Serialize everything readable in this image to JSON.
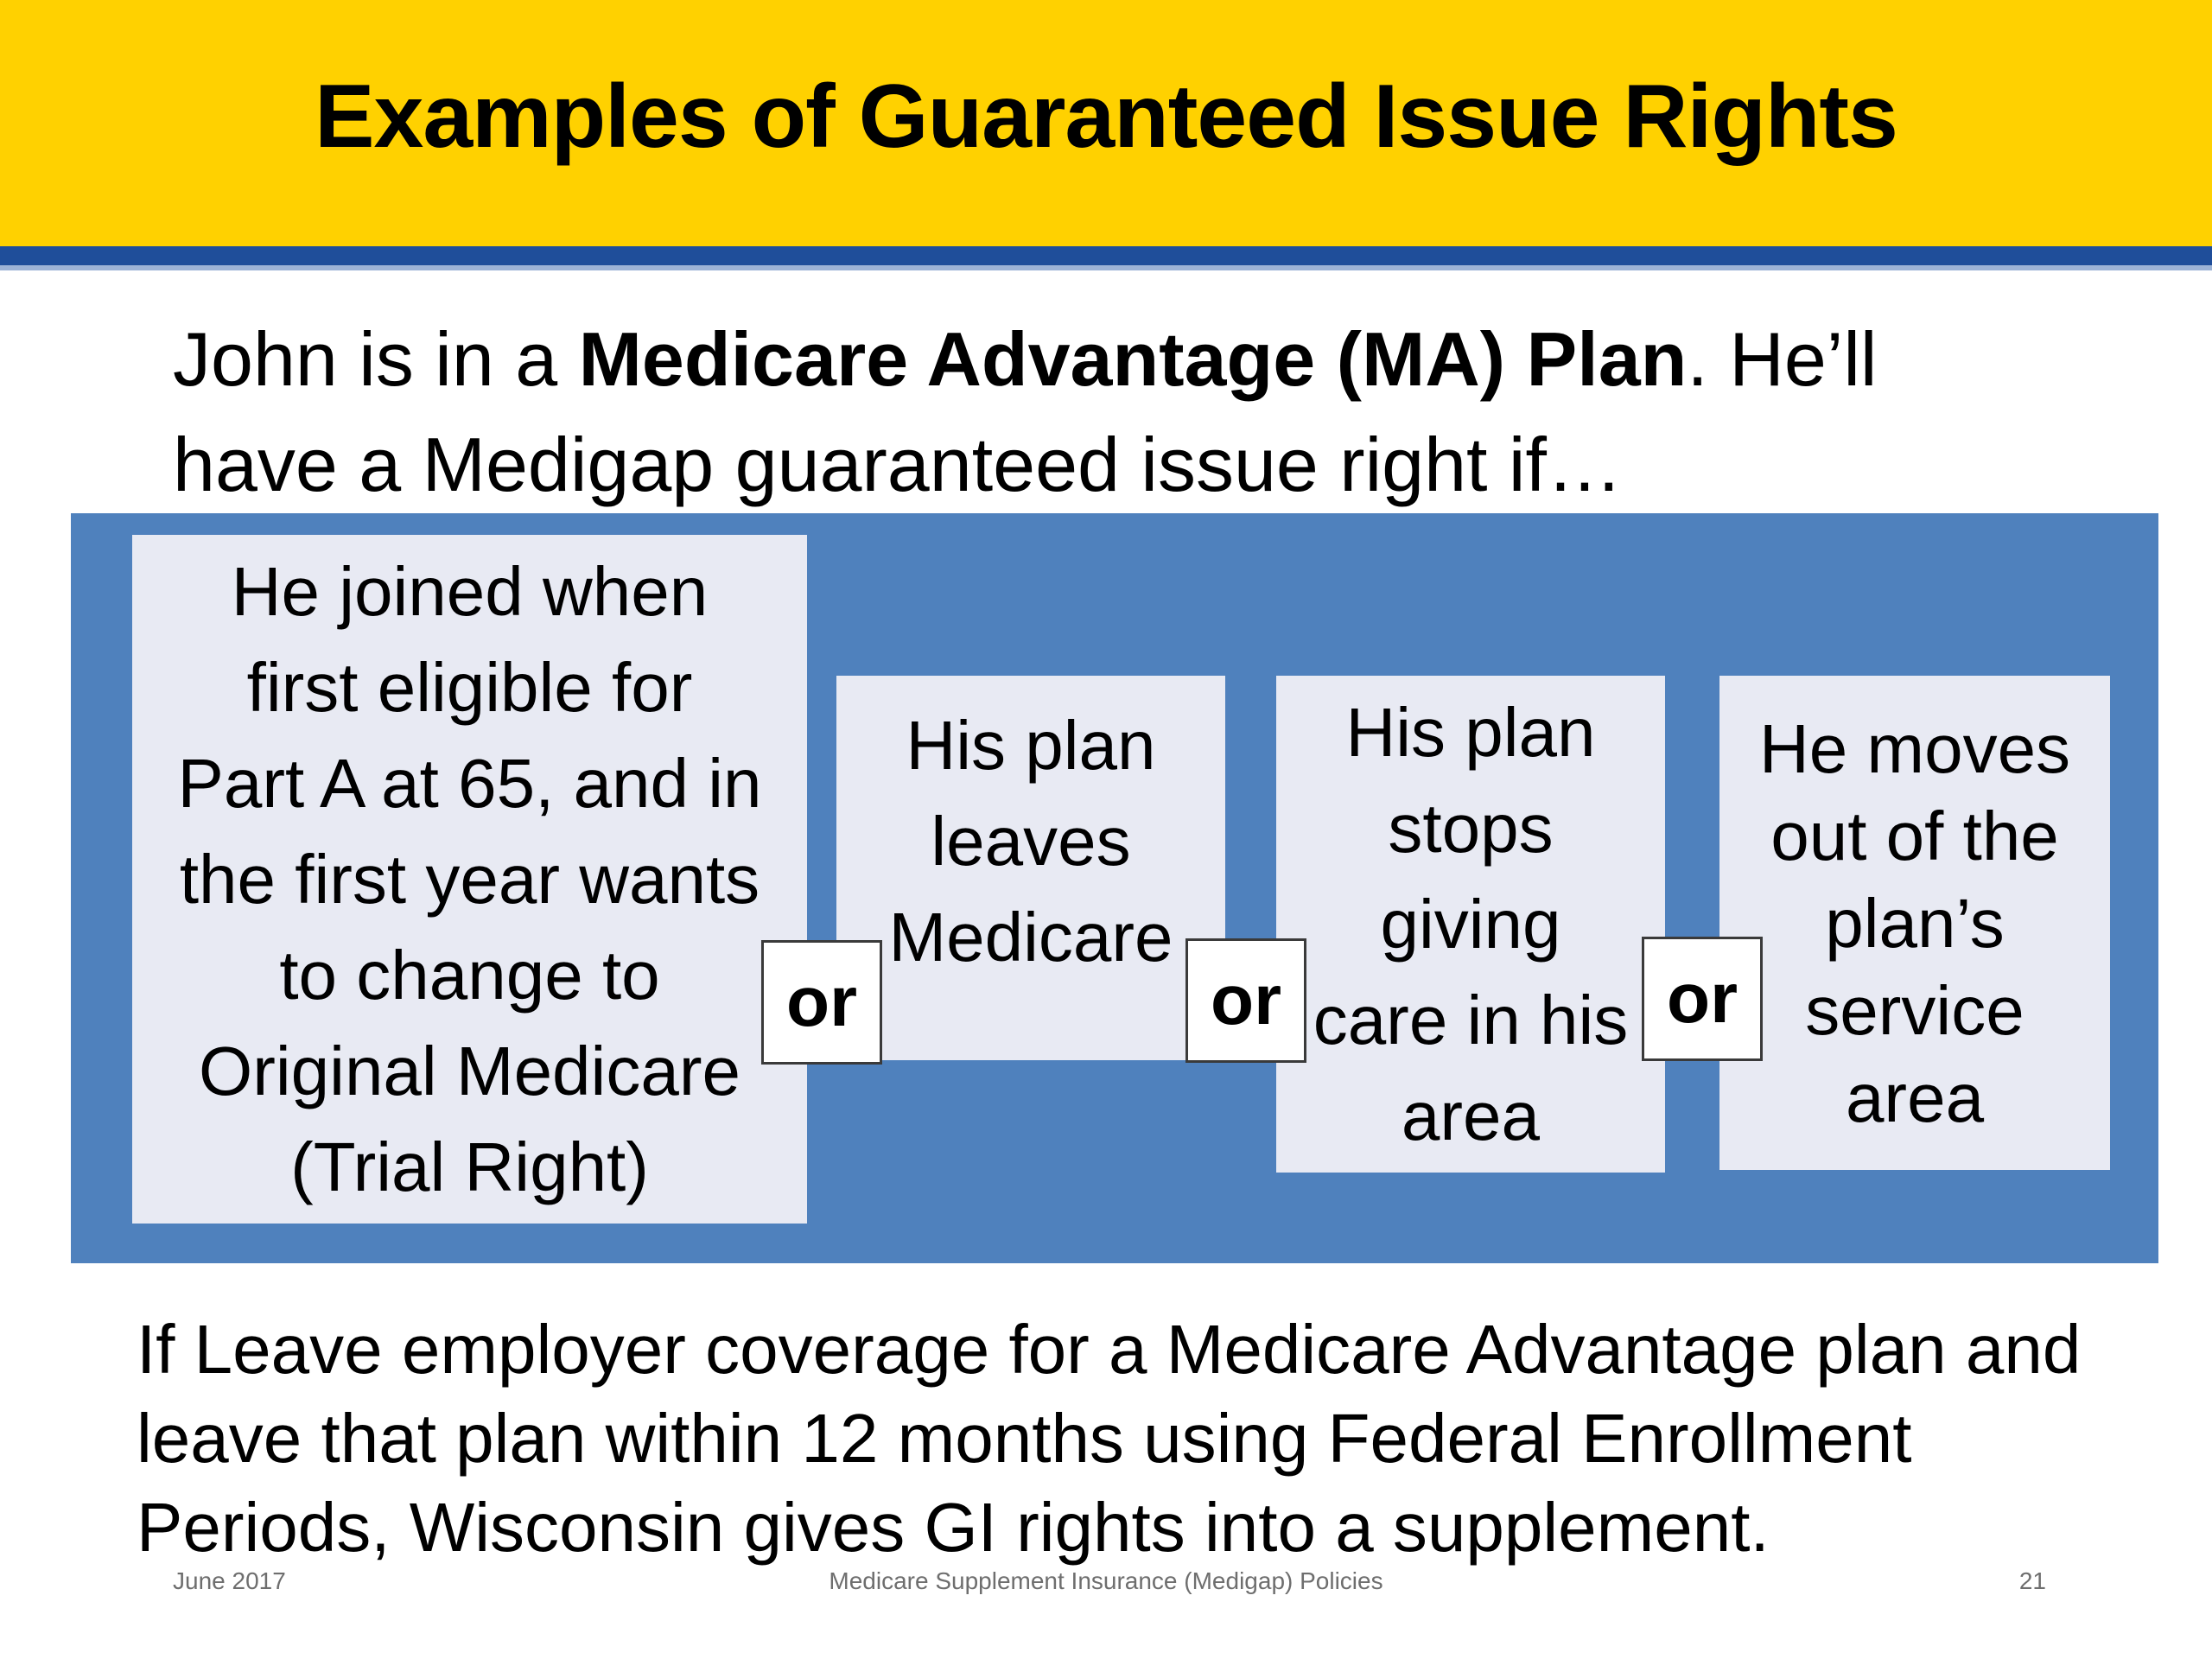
{
  "header": {
    "title": "Examples of Guaranteed Issue Rights",
    "bar_color": "#FFD100",
    "rule_color": "#1F4E9A"
  },
  "intro": {
    "before_bold": "John is in a ",
    "bold": "Medicare Advantage (MA) Plan",
    "after_bold": ". He’ll",
    "line2": "have a Medigap guaranteed issue right if…"
  },
  "panel": {
    "color": "#4F81BD",
    "cards": [
      {
        "lines": [
          "He joined when",
          "first eligible for",
          "Part A at 65, and in",
          "the first year wants",
          "to change to",
          "Original Medicare",
          "(Trial Right)"
        ]
      },
      {
        "lines": [
          "His plan",
          "leaves",
          "Medicare"
        ]
      },
      {
        "lines": [
          "His plan",
          "stops",
          "giving",
          "care in his",
          "area"
        ]
      },
      {
        "lines": [
          "He moves",
          "out of the",
          "plan’s",
          "service",
          "area"
        ]
      }
    ],
    "connector": "or"
  },
  "footnote": {
    "lines": [
      "If Leave employer coverage for a Medicare Advantage plan and",
      "leave that plan within 12 months using Federal Enrollment",
      "Periods, Wisconsin gives GI rights into a supplement."
    ]
  },
  "footer": {
    "date": "June 2017",
    "center": "Medicare Supplement Insurance (Medigap) Policies",
    "page": "21"
  }
}
